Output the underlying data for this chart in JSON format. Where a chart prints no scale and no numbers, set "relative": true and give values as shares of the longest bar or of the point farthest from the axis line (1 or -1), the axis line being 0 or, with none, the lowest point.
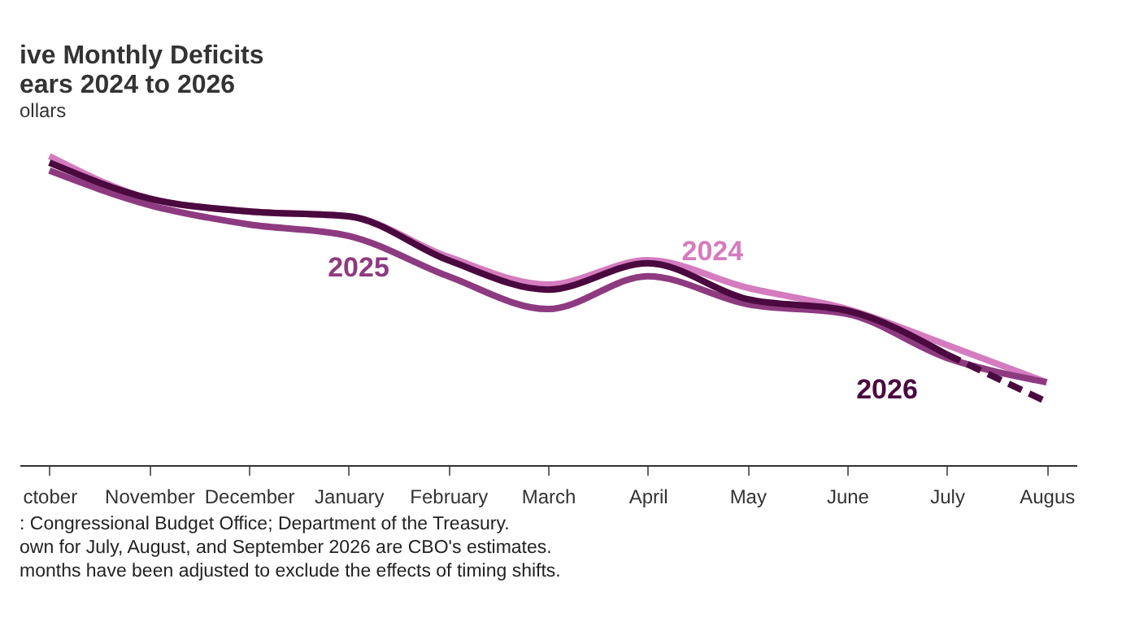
{
  "chart_data": {
    "type": "line",
    "title": [
      "ive Monthly Deficits",
      "ears 2024 to 2026"
    ],
    "subtitle": "ollars",
    "categories": [
      "ctober",
      "November",
      "December",
      "January",
      "February",
      "March",
      "April",
      "May",
      "June",
      "July",
      "Augus"
    ],
    "relative": true,
    "legend": false,
    "grid": false,
    "marker": "none",
    "series": [
      {
        "name": "2024",
        "color": "#d47cbf",
        "line_style": "solid",
        "values": [
          1,
          0.863,
          0.821,
          0.805,
          0.674,
          0.584,
          0.663,
          0.574,
          0.505,
          0.389,
          0.268
        ]
      },
      {
        "name": "2025",
        "color": "#8e3a80",
        "line_style": "solid",
        "values": [
          0.953,
          0.842,
          0.779,
          0.742,
          0.611,
          0.505,
          0.611,
          0.521,
          0.489,
          0.347,
          0.268
        ]
      },
      {
        "name": "2026",
        "color": "#4b0a3f",
        "line_style": "solid",
        "values": [
          0.979,
          0.863,
          0.821,
          0.805,
          0.663,
          0.568,
          0.653,
          0.537,
          0.5,
          0.358,
          null
        ]
      },
      {
        "color": "#4b0a3f",
        "line_style": "dashed",
        "values": [
          null,
          null,
          null,
          null,
          null,
          null,
          null,
          null,
          null,
          0.358,
          0.205
        ]
      }
    ],
    "annotations": [
      ": Congressional Budget Office; Department of the Treasury.",
      "own for July, August, and September 2026 are CBO's estimates.",
      "months have been adjusted to exclude the effects of timing shifts."
    ]
  }
}
